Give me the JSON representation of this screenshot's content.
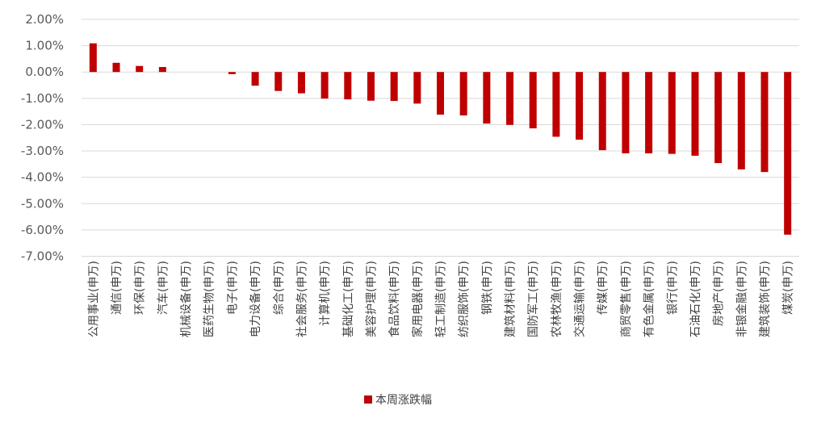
{
  "chart_data": {
    "type": "bar",
    "title": "",
    "xlabel": "",
    "ylabel": "",
    "ylim": [
      -0.07,
      0.02
    ],
    "y_ticks": [
      "2.00%",
      "1.00%",
      "0.00%",
      "-1.00%",
      "-2.00%",
      "-3.00%",
      "-4.00%",
      "-5.00%",
      "-6.00%",
      "-7.00%"
    ],
    "y_tick_values": [
      0.02,
      0.01,
      0,
      -0.01,
      -0.02,
      -0.03,
      -0.04,
      -0.05,
      -0.06,
      -0.07
    ],
    "grid": true,
    "legend_position": "bottom-center",
    "bar_color": "#C00000",
    "categories": [
      "公用事业(申万)",
      "通信(申万)",
      "环保(申万)",
      "汽车(申万)",
      "机械设备(申万)",
      "医药生物(申万)",
      "电子(申万)",
      "电力设备(申万)",
      "综合(申万)",
      "社会服务(申万)",
      "计算机(申万)",
      "基础化工(申万)",
      "美容护理(申万)",
      "食品饮料(申万)",
      "家用电器(申万)",
      "轻工制造(申万)",
      "纺织服饰(申万)",
      "钢铁(申万)",
      "建筑材料(申万)",
      "国防军工(申万)",
      "农林牧渔(申万)",
      "交通运输(申万)",
      "传媒(申万)",
      "商贸零售(申万)",
      "有色金属(申万)",
      "银行(申万)",
      "石油石化(申万)",
      "房地产(申万)",
      "非银金融(申万)",
      "建筑装饰(申万)",
      "煤炭(申万)"
    ],
    "series": [
      {
        "name": "本周涨跌幅",
        "values": [
          0.0109,
          0.0035,
          0.0023,
          0.0019,
          0,
          0,
          -0.0008,
          -0.0052,
          -0.0072,
          -0.0081,
          -0.0101,
          -0.0104,
          -0.0109,
          -0.011,
          -0.012,
          -0.0162,
          -0.0165,
          -0.0196,
          -0.0201,
          -0.0214,
          -0.0246,
          -0.0257,
          -0.0297,
          -0.0309,
          -0.0309,
          -0.0311,
          -0.0318,
          -0.0346,
          -0.037,
          -0.038,
          -0.0618
        ]
      }
    ]
  }
}
